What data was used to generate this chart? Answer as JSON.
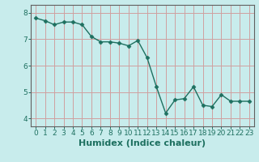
{
  "x": [
    0,
    1,
    2,
    3,
    4,
    5,
    6,
    7,
    8,
    9,
    10,
    11,
    12,
    13,
    14,
    15,
    16,
    17,
    18,
    19,
    20,
    21,
    22,
    23
  ],
  "y": [
    7.8,
    7.7,
    7.55,
    7.65,
    7.65,
    7.55,
    7.1,
    6.9,
    6.9,
    6.85,
    6.75,
    6.95,
    6.3,
    5.2,
    4.2,
    4.7,
    4.75,
    5.2,
    4.5,
    4.45,
    4.9,
    4.65,
    4.65,
    4.65
  ],
  "line_color": "#1e7060",
  "marker": "D",
  "marker_size": 2.5,
  "line_width": 1.0,
  "bg_color": "#c8ecec",
  "grid_color": "#d0a0a0",
  "xlabel": "Humidex (Indice chaleur)",
  "xlabel_fontsize": 8,
  "yticks": [
    4,
    5,
    6,
    7,
    8
  ],
  "xticks": [
    0,
    1,
    2,
    3,
    4,
    5,
    6,
    7,
    8,
    9,
    10,
    11,
    12,
    13,
    14,
    15,
    16,
    17,
    18,
    19,
    20,
    21,
    22,
    23
  ],
  "xtick_labels": [
    "0",
    "1",
    "2",
    "3",
    "4",
    "5",
    "6",
    "7",
    "8",
    "9",
    "10",
    "11",
    "12",
    "13",
    "14",
    "15",
    "16",
    "17",
    "18",
    "19",
    "20",
    "21",
    "22",
    "23"
  ],
  "ylim": [
    3.7,
    8.3
  ],
  "xlim": [
    -0.5,
    23.5
  ],
  "tick_fontsize": 6.5,
  "axis_color": "#1e7060",
  "xlabel_color": "#1e7060",
  "spine_color": "#606060"
}
